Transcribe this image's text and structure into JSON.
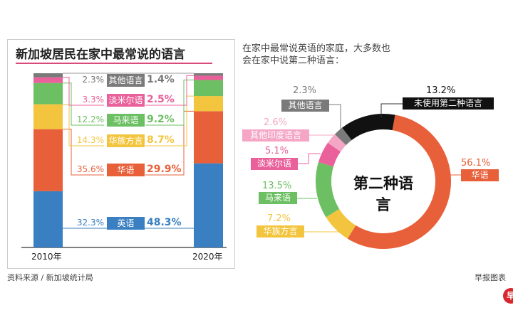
{
  "left_chart": {
    "title": "新加坡居民在家中最常说的语言",
    "years": [
      "2010年",
      "2020年"
    ]
  },
  "right_chart": {
    "title_line1": "在家中最常说英语的家庭，大多数也",
    "title_line2": "会在家中说第二种语言：",
    "center_label": "第二种语言"
  },
  "footer": {
    "source": "资料来源 / 新加坡统计局",
    "credit": "早报图表",
    "logo": "早"
  },
  "chart_data": [
    {
      "type": "bar",
      "stacked": true,
      "title": "新加坡居民在家中最常说的语言",
      "categories": [
        "2010年",
        "2020年"
      ],
      "series": [
        {
          "name": "英语",
          "values": [
            32.3,
            48.3
          ],
          "labels": [
            "32.3%",
            "48.3%"
          ],
          "color": "#3a7fc1"
        },
        {
          "name": "华语",
          "values": [
            35.6,
            29.9
          ],
          "labels": [
            "35.6%",
            "29.9%"
          ],
          "color": "#e8603a"
        },
        {
          "name": "华族方言",
          "values": [
            14.3,
            8.7
          ],
          "labels": [
            "14.3%",
            "8.7%"
          ],
          "color": "#f3c53e"
        },
        {
          "name": "马来语",
          "values": [
            12.2,
            9.2
          ],
          "labels": [
            "12.2%",
            "9.2%"
          ],
          "color": "#6cbf62"
        },
        {
          "name": "淡米尔语",
          "values": [
            3.3,
            2.5
          ],
          "labels": [
            "3.3%",
            "2.5%"
          ],
          "color": "#e9609a"
        },
        {
          "name": "其他语言",
          "values": [
            2.3,
            1.4
          ],
          "labels": [
            "2.3%",
            "1.4%"
          ],
          "color": "#7a7a7a"
        }
      ]
    },
    {
      "type": "pie",
      "donut": true,
      "title": "第二种语言",
      "slices": [
        {
          "name": "华语",
          "value": 56.1,
          "label": "56.1%",
          "color": "#e8603a"
        },
        {
          "name": "华族方言",
          "value": 7.2,
          "label": "7.2%",
          "color": "#f3c53e"
        },
        {
          "name": "马来语",
          "value": 13.5,
          "label": "13.5%",
          "color": "#6cbf62"
        },
        {
          "name": "淡米尔语",
          "value": 5.1,
          "label": "5.1%",
          "color": "#e9609a"
        },
        {
          "name": "其他印度语言",
          "value": 2.6,
          "label": "2.6%",
          "color": "#f4a6c4"
        },
        {
          "name": "其他语言",
          "value": 2.3,
          "label": "2.3%",
          "color": "#7a7a7a"
        },
        {
          "name": "未使用第二种语言",
          "value": 13.2,
          "label": "13.2%",
          "color": "#111111"
        }
      ]
    }
  ]
}
